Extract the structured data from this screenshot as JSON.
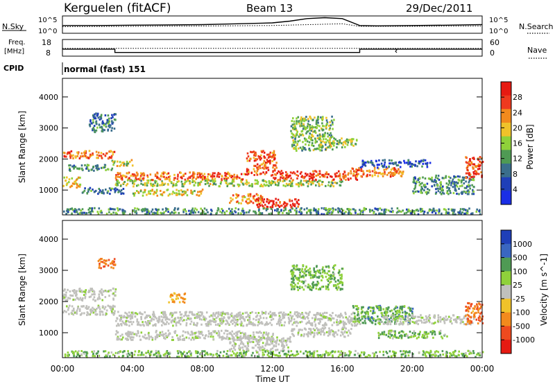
{
  "header": {
    "station": "Kerguelen (fitACF)",
    "beam": "Beam 13",
    "date": "29/Dec/2011"
  },
  "left_labels": {
    "nsky": "N.Sky",
    "freq_line1": "Freq.",
    "freq_line2": "[MHz]",
    "cpid": "CPID"
  },
  "right_labels": {
    "nsearch": "N.Search",
    "nsearch_style": "dotted",
    "nave": "Nave",
    "nave_style": "dotted"
  },
  "cpid_text": "normal (fast) 151",
  "colors": {
    "power_scale": [
      "#1a2ee6",
      "#1f3fb8",
      "#3a6e8c",
      "#4f9a54",
      "#8fd13a",
      "#f0c22a",
      "#f28a1d",
      "#ee3a1f",
      "#e61a12"
    ],
    "velocity_scale": [
      "#1f3fb8",
      "#3a66c0",
      "#4f9a54",
      "#8fd13a",
      "#c0c0bc",
      "#f0c22a",
      "#f28a1d",
      "#ee4a1f",
      "#e61a12"
    ],
    "ground_scatter": "#c0c0bc"
  },
  "chart_data": [
    {
      "type": "line",
      "panel": "noise",
      "series": [
        {
          "name": "N.Sky",
          "style": "solid",
          "x": [
            "00:00",
            "02:00",
            "04:00",
            "06:00",
            "08:00",
            "10:00",
            "12:00",
            "13:00",
            "14:00",
            "15:00",
            "16:00",
            "17:00",
            "18:00",
            "20:00",
            "22:00",
            "24:00"
          ],
          "values": [
            0.45,
            0.45,
            0.47,
            0.48,
            0.5,
            0.55,
            0.6,
            0.7,
            0.85,
            0.9,
            0.85,
            0.45,
            0.43,
            0.45,
            0.47,
            0.5
          ]
        },
        {
          "name": "N.Search",
          "style": "dotted",
          "x": [
            "00:00",
            "04:00",
            "08:00",
            "12:00",
            "16:00",
            "17:00",
            "20:00",
            "24:00"
          ],
          "values": [
            0.38,
            0.4,
            0.42,
            0.45,
            0.55,
            0.4,
            0.4,
            0.42
          ]
        }
      ],
      "y_ticks_left": [
        "10^5",
        "10^0"
      ],
      "y_ticks_right": [
        "10^5",
        "10^0"
      ]
    },
    {
      "type": "line",
      "panel": "frequency",
      "series": [
        {
          "name": "Freq.",
          "style": "solid",
          "x": [
            "00:00",
            "03:00",
            "03:00",
            "17:00",
            "17:00",
            "24:00"
          ],
          "values": [
            12.2,
            12.2,
            10.2,
            10.2,
            12.2,
            12.2
          ],
          "unit": "MHz"
        },
        {
          "name": "Nave",
          "style": "dotted",
          "x": [
            "00:00",
            "24:00"
          ],
          "values": [
            28,
            28
          ]
        }
      ],
      "y_ticks_left": [
        "18",
        "8"
      ],
      "y_ticks_right": [
        "60",
        "0"
      ]
    },
    {
      "type": "heatmap",
      "panel": "power",
      "ylabel": "Slant Range [km]",
      "yticks": [
        1000,
        2000,
        3000,
        4000
      ],
      "ylim": [
        200,
        4600
      ],
      "colorbar": {
        "label": "Power [dB]",
        "ticks": [
          4,
          8,
          12,
          16,
          20,
          24,
          28
        ],
        "range": [
          0,
          32
        ]
      },
      "bands": [
        {
          "t": [
            0,
            3
          ],
          "r": [
            2050,
            2300
          ],
          "level": 0.75
        },
        {
          "t": [
            0,
            1
          ],
          "r": [
            1100,
            1450
          ],
          "level": 0.6
        },
        {
          "t": [
            0.3,
            2.8
          ],
          "r": [
            1650,
            1850
          ],
          "level": 0.35
        },
        {
          "t": [
            2.8,
            4
          ],
          "r": [
            1800,
            2000
          ],
          "level": 0.55
        },
        {
          "t": [
            3,
            10.5
          ],
          "r": [
            1350,
            1600
          ],
          "level": 0.78
        },
        {
          "t": [
            3,
            16
          ],
          "r": [
            1150,
            1350
          ],
          "level": 0.5
        },
        {
          "t": [
            4,
            8
          ],
          "r": [
            850,
            1050
          ],
          "level": 0.6
        },
        {
          "t": [
            9.5,
            11.5
          ],
          "r": [
            600,
            900
          ],
          "level": 0.7
        },
        {
          "t": [
            11,
            13.5
          ],
          "r": [
            450,
            750
          ],
          "level": 0.9
        },
        {
          "t": [
            10.5,
            12.2
          ],
          "r": [
            1500,
            2300
          ],
          "level": 0.8
        },
        {
          "t": [
            12,
            16.8
          ],
          "r": [
            1350,
            1650
          ],
          "level": 0.85
        },
        {
          "t": [
            13,
            15.5
          ],
          "r": [
            2300,
            3400
          ],
          "level": 0.45
        },
        {
          "t": [
            15.2,
            16.8
          ],
          "r": [
            2400,
            2700
          ],
          "level": 0.5
        },
        {
          "t": [
            16.5,
            19.5
          ],
          "r": [
            1450,
            1750
          ],
          "level": 0.75
        },
        {
          "t": [
            17,
            21
          ],
          "r": [
            1750,
            2000
          ],
          "level": 0.2
        },
        {
          "t": [
            20,
            23.5
          ],
          "r": [
            900,
            1500
          ],
          "level": 0.35
        },
        {
          "t": [
            23,
            24
          ],
          "r": [
            1400,
            2100
          ],
          "level": 0.85
        },
        {
          "t": [
            0,
            24
          ],
          "r": [
            250,
            450
          ],
          "level": 0.35
        },
        {
          "t": [
            1,
            3.5
          ],
          "r": [
            900,
            1100
          ],
          "level": 0.3
        },
        {
          "t": [
            1.5,
            3
          ],
          "r": [
            2900,
            3500
          ],
          "level": 0.3
        }
      ]
    },
    {
      "type": "heatmap",
      "panel": "velocity",
      "ylabel": "Slant Range [km]",
      "xlabel": "Time UT",
      "xticks": [
        "00:00",
        "04:00",
        "08:00",
        "12:00",
        "16:00",
        "20:00",
        "00:00"
      ],
      "xlim": [
        0,
        24
      ],
      "yticks": [
        1000,
        2000,
        3000,
        4000
      ],
      "ylim": [
        200,
        4600
      ],
      "colorbar": {
        "label": "Velocity [m s^-1]",
        "ticks": [
          1000,
          500,
          100,
          25,
          -25,
          -100,
          -500,
          -1000
        ]
      },
      "bands": [
        {
          "t": [
            0,
            3
          ],
          "r": [
            2050,
            2450
          ],
          "v": 0
        },
        {
          "t": [
            0,
            3
          ],
          "r": [
            1600,
            1900
          ],
          "v": 0
        },
        {
          "t": [
            3,
            17
          ],
          "r": [
            1250,
            1700
          ],
          "v": 0
        },
        {
          "t": [
            3,
            12
          ],
          "r": [
            800,
            1100
          ],
          "v": 0
        },
        {
          "t": [
            9.5,
            13
          ],
          "r": [
            450,
            900
          ],
          "v": 0
        },
        {
          "t": [
            13,
            16.5
          ],
          "r": [
            900,
            1200
          ],
          "v": 0
        },
        {
          "t": [
            2,
            3
          ],
          "r": [
            3100,
            3400
          ],
          "v": -0.6
        },
        {
          "t": [
            13,
            16
          ],
          "r": [
            2400,
            3200
          ],
          "v": 0.35
        },
        {
          "t": [
            16.5,
            20
          ],
          "r": [
            1300,
            1900
          ],
          "v": 0.45
        },
        {
          "t": [
            18,
            23.5
          ],
          "r": [
            1300,
            1600
          ],
          "v": 0
        },
        {
          "t": [
            23,
            24
          ],
          "r": [
            1300,
            2000
          ],
          "v": -0.6
        },
        {
          "t": [
            0,
            24
          ],
          "r": [
            250,
            450
          ],
          "v": 0.3
        },
        {
          "t": [
            18,
            22
          ],
          "r": [
            850,
            1100
          ],
          "v": 0.3
        },
        {
          "t": [
            6,
            7
          ],
          "r": [
            2000,
            2300
          ],
          "v": -0.4
        }
      ]
    }
  ]
}
